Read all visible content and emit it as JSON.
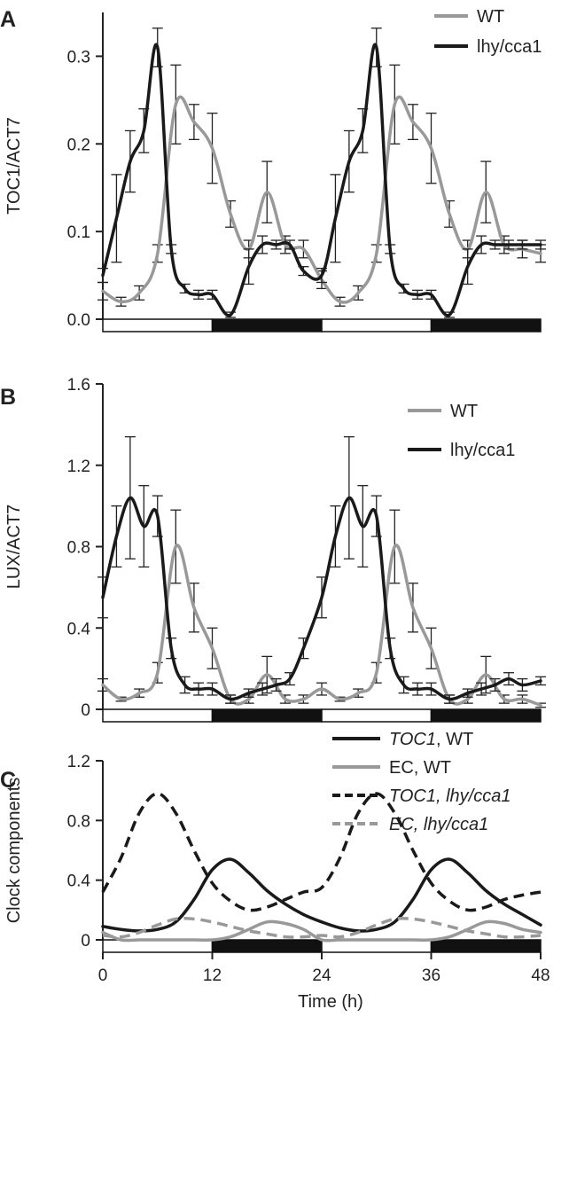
{
  "chart_data": [
    {
      "panel": "A",
      "type": "line",
      "ylabel": "TOC1/ACT7",
      "xlabel": "",
      "ylim": [
        0,
        0.35
      ],
      "yticks": [
        0.0,
        0.1,
        0.2,
        0.3
      ],
      "ytick_labels": [
        "0.0",
        "0.1",
        "0.2",
        "0.3"
      ],
      "xlim": [
        0,
        48
      ],
      "light_dark_bar": [
        {
          "from": 0,
          "to": 12,
          "fill": "light"
        },
        {
          "from": 12,
          "to": 24,
          "fill": "dark"
        },
        {
          "from": 24,
          "to": 36,
          "fill": "light"
        },
        {
          "from": 36,
          "to": 48,
          "fill": "dark"
        }
      ],
      "legend_position": "top-right",
      "series": [
        {
          "name": "WT",
          "color": "#999999",
          "x": [
            0,
            2,
            4,
            6,
            8,
            10,
            12,
            14,
            16,
            18,
            20,
            22,
            24,
            26,
            28,
            30,
            32,
            34,
            36,
            38,
            40,
            42,
            44,
            46,
            48
          ],
          "y": [
            0.032,
            0.02,
            0.03,
            0.075,
            0.245,
            0.225,
            0.195,
            0.12,
            0.08,
            0.145,
            0.085,
            0.08,
            0.045,
            0.02,
            0.03,
            0.075,
            0.245,
            0.225,
            0.195,
            0.12,
            0.08,
            0.145,
            0.085,
            0.08,
            0.075
          ],
          "err": [
            0.01,
            0.005,
            0.008,
            0.01,
            0.045,
            0.02,
            0.04,
            0.015,
            0.01,
            0.035,
            0.01,
            0.01,
            0.01,
            0.005,
            0.008,
            0.01,
            0.045,
            0.02,
            0.04,
            0.015,
            0.01,
            0.035,
            0.01,
            0.01,
            0.01
          ]
        },
        {
          "name": "lhy/cca1",
          "color": "#1a1a1a",
          "x": [
            0,
            1.5,
            3,
            4.5,
            6,
            7.5,
            9,
            10.5,
            12,
            14,
            16,
            17.5,
            19,
            20.5,
            22,
            24,
            25.5,
            27,
            28.5,
            30,
            31.5,
            33,
            34.5,
            36,
            38,
            40,
            41.5,
            43,
            44.5,
            46,
            48
          ],
          "y": [
            0.05,
            0.115,
            0.18,
            0.215,
            0.31,
            0.08,
            0.035,
            0.028,
            0.028,
            0.005,
            0.06,
            0.085,
            0.085,
            0.085,
            0.055,
            0.05,
            0.115,
            0.18,
            0.215,
            0.31,
            0.08,
            0.035,
            0.028,
            0.028,
            0.005,
            0.06,
            0.085,
            0.085,
            0.085,
            0.085,
            0.085
          ],
          "err": [
            0.008,
            0.05,
            0.035,
            0.025,
            0.022,
            0.005,
            0.005,
            0.005,
            0.005,
            0.003,
            0.02,
            0.01,
            0.005,
            0.005,
            0.005,
            0.008,
            0.05,
            0.035,
            0.025,
            0.022,
            0.005,
            0.005,
            0.005,
            0.005,
            0.003,
            0.02,
            0.01,
            0.005,
            0.005,
            0.005,
            0.005
          ]
        }
      ]
    },
    {
      "panel": "B",
      "type": "line",
      "ylabel": "LUX/ACT7",
      "xlabel": "",
      "ylim": [
        0,
        1.6
      ],
      "yticks": [
        0,
        0.4,
        0.8,
        1.2,
        1.6
      ],
      "ytick_labels": [
        "0",
        "0.4",
        "0.8",
        "1.2",
        "1.6"
      ],
      "xlim": [
        0,
        48
      ],
      "light_dark_bar": [
        {
          "from": 0,
          "to": 12,
          "fill": "light"
        },
        {
          "from": 12,
          "to": 24,
          "fill": "dark"
        },
        {
          "from": 24,
          "to": 36,
          "fill": "light"
        },
        {
          "from": 36,
          "to": 48,
          "fill": "dark"
        }
      ],
      "legend_position": "top-right",
      "series": [
        {
          "name": "WT",
          "color": "#999999",
          "x": [
            0,
            2,
            4,
            6,
            8,
            10,
            12,
            14,
            16,
            18,
            20,
            22,
            24,
            26,
            28,
            30,
            32,
            34,
            36,
            38,
            40,
            42,
            44,
            46,
            48
          ],
          "y": [
            0.12,
            0.05,
            0.08,
            0.18,
            0.8,
            0.5,
            0.3,
            0.05,
            0.05,
            0.17,
            0.05,
            0.05,
            0.1,
            0.05,
            0.08,
            0.18,
            0.8,
            0.5,
            0.3,
            0.05,
            0.05,
            0.17,
            0.05,
            0.05,
            0.02
          ],
          "err": [
            0.03,
            0.01,
            0.02,
            0.05,
            0.18,
            0.12,
            0.1,
            0.02,
            0.02,
            0.09,
            0.02,
            0.02,
            0.03,
            0.01,
            0.02,
            0.05,
            0.18,
            0.12,
            0.1,
            0.02,
            0.02,
            0.09,
            0.02,
            0.02,
            0.01
          ]
        },
        {
          "name": "lhy/cca1",
          "color": "#1a1a1a",
          "x": [
            0,
            1.5,
            3,
            4.5,
            6,
            7.5,
            9,
            10.5,
            12,
            14,
            16,
            17.5,
            19,
            20.5,
            22,
            24,
            25.5,
            27,
            28.5,
            30,
            31.5,
            33,
            34.5,
            36,
            38,
            40,
            41.5,
            43,
            44.5,
            46,
            48
          ],
          "y": [
            0.55,
            0.85,
            1.04,
            0.9,
            0.95,
            0.3,
            0.12,
            0.1,
            0.1,
            0.05,
            0.08,
            0.1,
            0.12,
            0.15,
            0.3,
            0.55,
            0.85,
            1.04,
            0.9,
            0.95,
            0.3,
            0.12,
            0.1,
            0.1,
            0.05,
            0.08,
            0.1,
            0.12,
            0.15,
            0.12,
            0.14
          ],
          "err": [
            0.1,
            0.15,
            0.3,
            0.2,
            0.1,
            0.05,
            0.04,
            0.03,
            0.03,
            0.02,
            0.02,
            0.03,
            0.03,
            0.03,
            0.05,
            0.1,
            0.15,
            0.3,
            0.2,
            0.1,
            0.05,
            0.04,
            0.03,
            0.03,
            0.02,
            0.02,
            0.03,
            0.03,
            0.03,
            0.03,
            0.02
          ]
        }
      ]
    },
    {
      "panel": "C",
      "type": "line",
      "ylabel": "Clock components",
      "xlabel": "Time (h)",
      "ylim": [
        0,
        1.2
      ],
      "yticks": [
        0,
        0.4,
        0.8,
        1.2
      ],
      "ytick_labels": [
        "0",
        "0.4",
        "0.8",
        "1.2"
      ],
      "xlim": [
        0,
        48
      ],
      "xticks": [
        0,
        12,
        24,
        36,
        48
      ],
      "xtick_labels": [
        "0",
        "12",
        "24",
        "36",
        "48"
      ],
      "light_dark_bar": [
        {
          "from": 0,
          "to": 12,
          "fill": "light"
        },
        {
          "from": 12,
          "to": 24,
          "fill": "dark"
        },
        {
          "from": 24,
          "to": 36,
          "fill": "light"
        },
        {
          "from": 36,
          "to": 48,
          "fill": "dark"
        }
      ],
      "legend_position": "top-right",
      "series": [
        {
          "name": "TOC1, WT",
          "name_parts": [
            "TOC1",
            ", WT"
          ],
          "color": "#1a1a1a",
          "dash": "solid",
          "x": [
            0,
            2,
            4,
            6,
            8,
            10,
            12,
            14,
            16,
            18,
            20,
            22,
            24,
            26,
            28,
            30,
            32,
            34,
            36,
            38,
            40,
            42,
            44,
            46,
            48
          ],
          "y": [
            0.09,
            0.07,
            0.06,
            0.07,
            0.12,
            0.27,
            0.47,
            0.54,
            0.45,
            0.33,
            0.24,
            0.17,
            0.12,
            0.08,
            0.06,
            0.07,
            0.12,
            0.27,
            0.47,
            0.54,
            0.45,
            0.33,
            0.24,
            0.17,
            0.1
          ]
        },
        {
          "name": "EC, WT",
          "name_parts": [
            "EC, WT"
          ],
          "color": "#999999",
          "dash": "solid",
          "x": [
            0,
            2,
            4,
            6,
            8,
            10,
            12,
            14,
            16,
            18,
            20,
            22,
            24,
            26,
            28,
            30,
            32,
            34,
            36,
            38,
            40,
            42,
            44,
            46,
            48
          ],
          "y": [
            0.05,
            0.0,
            0.0,
            0.0,
            0.0,
            0.0,
            0.0,
            0.02,
            0.07,
            0.12,
            0.11,
            0.07,
            0.0,
            0.0,
            0.0,
            0.0,
            0.0,
            0.0,
            0.0,
            0.02,
            0.07,
            0.12,
            0.11,
            0.07,
            0.05
          ]
        },
        {
          "name": "TOC1, lhy/cca1",
          "name_parts": [
            "TOC1, lhy/cca1"
          ],
          "color": "#1a1a1a",
          "dash": "dashed",
          "x": [
            0,
            2,
            4,
            6,
            8,
            10,
            12,
            14,
            16,
            18,
            20,
            22,
            24,
            26,
            28,
            30,
            32,
            34,
            36,
            38,
            40,
            42,
            44,
            46,
            48
          ],
          "y": [
            0.32,
            0.55,
            0.85,
            0.98,
            0.85,
            0.6,
            0.38,
            0.26,
            0.2,
            0.22,
            0.27,
            0.32,
            0.35,
            0.55,
            0.85,
            0.98,
            0.85,
            0.6,
            0.38,
            0.26,
            0.2,
            0.22,
            0.27,
            0.3,
            0.32
          ]
        },
        {
          "name": "EC, lhy/cca1",
          "name_parts": [
            "EC, lhy/cca1"
          ],
          "color": "#999999",
          "dash": "dashed",
          "x": [
            0,
            2,
            4,
            6,
            8,
            10,
            12,
            14,
            16,
            18,
            20,
            22,
            24,
            26,
            28,
            30,
            32,
            34,
            36,
            38,
            40,
            42,
            44,
            46,
            48
          ],
          "y": [
            0.03,
            0.02,
            0.05,
            0.1,
            0.14,
            0.14,
            0.12,
            0.09,
            0.06,
            0.04,
            0.02,
            0.02,
            0.03,
            0.02,
            0.05,
            0.1,
            0.14,
            0.14,
            0.12,
            0.09,
            0.06,
            0.04,
            0.02,
            0.02,
            0.03
          ]
        }
      ]
    }
  ]
}
